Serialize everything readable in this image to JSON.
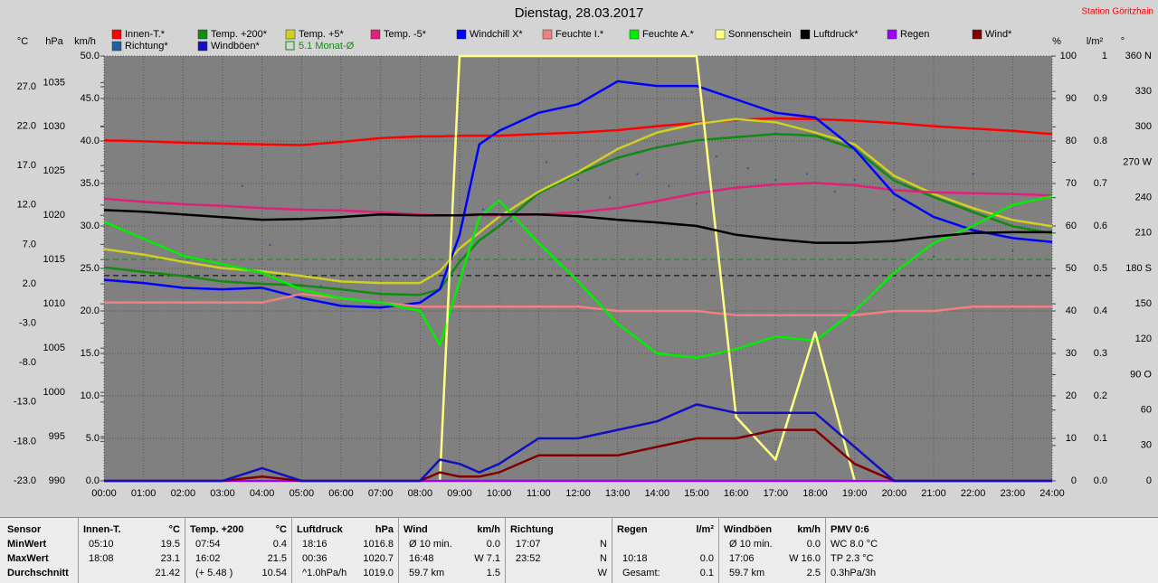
{
  "chart_data": {
    "type": "line",
    "title": "Dienstag, 28.03.2017",
    "station": "Station Göritzhain",
    "xlim": [
      0,
      24
    ],
    "xticks": [
      {
        "value": 0,
        "label": "00:00"
      },
      {
        "value": 1,
        "label": "01:00"
      },
      {
        "value": 2,
        "label": "02:00"
      },
      {
        "value": 3,
        "label": "03:00"
      },
      {
        "value": 4,
        "label": "04:00"
      },
      {
        "value": 5,
        "label": "05:00"
      },
      {
        "value": 6,
        "label": "06:00"
      },
      {
        "value": 7,
        "label": "07:00"
      },
      {
        "value": 8,
        "label": "08:00"
      },
      {
        "value": 9,
        "label": "09:00"
      },
      {
        "value": 10,
        "label": "10:00"
      },
      {
        "value": 11,
        "label": "11:00"
      },
      {
        "value": 12,
        "label": "12:00"
      },
      {
        "value": 13,
        "label": "13:00"
      },
      {
        "value": 14,
        "label": "14:00"
      },
      {
        "value": 15,
        "label": "15:00"
      },
      {
        "value": 16,
        "label": "16:00"
      },
      {
        "value": 17,
        "label": "17:00"
      },
      {
        "value": 18,
        "label": "18:00"
      },
      {
        "value": 19,
        "label": "19:00"
      },
      {
        "value": 20,
        "label": "20:00"
      },
      {
        "value": 21,
        "label": "21:00"
      },
      {
        "value": 22,
        "label": "22:00"
      },
      {
        "value": 23,
        "label": "23:00"
      },
      {
        "value": 24,
        "label": "24:00"
      }
    ],
    "x": [
      0,
      1,
      2,
      3,
      4,
      5,
      6,
      7,
      8,
      8.5,
      9,
      9.5,
      10,
      11,
      12,
      13,
      14,
      15,
      16,
      17,
      18,
      19,
      20,
      21,
      22,
      23,
      24
    ],
    "axes": {
      "temp": {
        "label": "°C",
        "ylim": [
          -23,
          30.9
        ],
        "yticks": [
          {
            "value": -23,
            "label": "-23.0"
          },
          {
            "value": -18,
            "label": "-18.0"
          },
          {
            "value": -13,
            "label": "-13.0"
          },
          {
            "value": -8,
            "label": "-8.0"
          },
          {
            "value": -3,
            "label": "-3.0"
          },
          {
            "value": 2,
            "label": "2.0"
          },
          {
            "value": 7,
            "label": "7.0"
          },
          {
            "value": 12,
            "label": "12.0"
          },
          {
            "value": 17,
            "label": "17.0"
          },
          {
            "value": 22,
            "label": "22.0"
          },
          {
            "value": 27,
            "label": "27.0"
          }
        ]
      },
      "hpa": {
        "label": "hPa",
        "ylim": [
          990,
          1038
        ],
        "yticks": [
          990,
          995,
          1000,
          1005,
          1010,
          1015,
          1020,
          1025,
          1030,
          1035
        ]
      },
      "kmh": {
        "label": "km/h",
        "ylim": [
          0,
          50
        ],
        "grid": true,
        "yticks": [
          {
            "value": 0,
            "label": "0.0"
          },
          {
            "value": 5,
            "label": "5.0"
          },
          {
            "value": 10,
            "label": "10.0"
          },
          {
            "value": 15,
            "label": "15.0"
          },
          {
            "value": 20,
            "label": "20.0"
          },
          {
            "value": 25,
            "label": "25.0"
          },
          {
            "value": 30,
            "label": "30.0"
          },
          {
            "value": 35,
            "label": "35.0"
          },
          {
            "value": 40,
            "label": "40.0"
          },
          {
            "value": 45,
            "label": "45.0"
          },
          {
            "value": 50,
            "label": "50.0"
          }
        ]
      },
      "pct": {
        "label": "%",
        "ylim": [
          0,
          100
        ],
        "yticks": [
          0,
          10,
          20,
          30,
          40,
          50,
          60,
          70,
          80,
          90,
          100
        ]
      },
      "rain": {
        "label": "l/m²",
        "ylim": [
          0,
          1
        ],
        "yticks": [
          {
            "value": 0,
            "label": "0.0"
          },
          {
            "value": 0.1,
            "label": "0.1"
          },
          {
            "value": 0.2,
            "label": "0.2"
          },
          {
            "value": 0.3,
            "label": "0.3"
          },
          {
            "value": 0.4,
            "label": "0.4"
          },
          {
            "value": 0.5,
            "label": "0.5"
          },
          {
            "value": 0.6,
            "label": "0.6"
          },
          {
            "value": 0.7,
            "label": "0.7"
          },
          {
            "value": 0.8,
            "label": "0.8"
          },
          {
            "value": 0.9,
            "label": "0.9"
          },
          1
        ]
      },
      "deg": {
        "label": "°",
        "ylim": [
          0,
          360
        ],
        "yticks": [
          0,
          30,
          60,
          {
            "value": 90,
            "label": "90 O"
          },
          120,
          150,
          {
            "value": 180,
            "label": "180 S"
          },
          210,
          240,
          {
            "value": 270,
            "label": "270 W"
          },
          300,
          330,
          {
            "value": 360,
            "label": "360 N"
          }
        ]
      }
    },
    "series": [
      {
        "name": "Innen-T.*",
        "color": "#ff0000",
        "axis": "temp",
        "values": [
          20.2,
          20.1,
          19.9,
          19.8,
          19.7,
          19.6,
          20.0,
          20.5,
          20.7,
          20.7,
          20.8,
          20.8,
          20.8,
          21.0,
          21.2,
          21.5,
          22.0,
          22.4,
          22.8,
          23.0,
          22.9,
          22.7,
          22.4,
          22.0,
          21.7,
          21.4,
          21.0
        ]
      },
      {
        "name": "Temp. +200*",
        "color": "#108a10",
        "axis": "temp",
        "values": [
          4.1,
          3.5,
          3.0,
          2.3,
          2.0,
          1.8,
          1.3,
          0.7,
          0.6,
          1.3,
          4.8,
          7.5,
          9.3,
          13.5,
          16.0,
          18.0,
          19.3,
          20.2,
          20.6,
          21.0,
          20.8,
          19.1,
          15.1,
          13.0,
          11.1,
          9.3,
          8.4
        ]
      },
      {
        "name": "Temp. +5*",
        "color": "#d0d020",
        "axis": "temp",
        "values": [
          6.4,
          5.7,
          4.8,
          4.0,
          3.6,
          3.0,
          2.3,
          2.1,
          2.1,
          3.6,
          6.5,
          8.5,
          10.5,
          13.7,
          16.2,
          19.1,
          21.2,
          22.3,
          22.9,
          22.5,
          21.2,
          19.7,
          15.7,
          13.4,
          11.6,
          10.1,
          9.3
        ]
      },
      {
        "name": "Temp. -5*",
        "color": "#e0207a",
        "axis": "temp",
        "values": [
          12.8,
          12.4,
          12.1,
          11.9,
          11.6,
          11.4,
          11.3,
          11.1,
          10.8,
          10.7,
          10.7,
          10.7,
          10.7,
          10.8,
          11.1,
          11.6,
          12.5,
          13.5,
          14.2,
          14.6,
          14.8,
          14.5,
          13.9,
          13.6,
          13.5,
          13.4,
          13.2
        ]
      },
      {
        "name": "Windchill X*",
        "color": "#0000ff",
        "axis": "temp",
        "values": [
          2.5,
          2.1,
          1.5,
          1.3,
          1.5,
          0.2,
          -0.8,
          -1.0,
          -0.4,
          1.3,
          8.2,
          19.7,
          21.4,
          23.7,
          24.8,
          27.7,
          27.1,
          27.1,
          25.4,
          23.7,
          23.1,
          19.1,
          13.4,
          10.5,
          8.8,
          7.8,
          7.3
        ]
      },
      {
        "name": "Feuchte I.*",
        "color": "#f08080",
        "axis": "pct",
        "values": [
          42,
          42,
          42,
          42,
          42,
          44,
          43,
          42,
          41,
          41,
          41,
          41,
          41,
          41,
          41,
          40,
          40,
          40,
          39,
          39,
          39,
          39,
          40,
          40,
          41,
          41,
          41
        ]
      },
      {
        "name": "Feuchte A.*",
        "color": "#00ee00",
        "axis": "pct",
        "values": [
          61,
          57,
          53,
          51,
          49,
          45,
          43,
          42,
          40,
          32,
          47,
          62,
          66,
          56,
          47,
          37,
          30,
          29,
          31,
          34,
          33,
          40,
          49,
          56,
          60,
          65,
          67
        ]
      },
      {
        "name": "Sonnenschein",
        "color": "#ffff80",
        "axis": "pct",
        "values": [
          0,
          0,
          0,
          0,
          0,
          0,
          0,
          0,
          0,
          0,
          100,
          100,
          100,
          100,
          100,
          100,
          100,
          100,
          15,
          5,
          35,
          0,
          0,
          0,
          0,
          0,
          0
        ]
      },
      {
        "name": "Luftdruck*",
        "color": "#000000",
        "axis": "hpa",
        "values": [
          1020.6,
          1020.4,
          1020.1,
          1019.8,
          1019.5,
          1019.6,
          1019.8,
          1020.1,
          1020.0,
          1020.0,
          1020.0,
          1020.1,
          1020.1,
          1020.1,
          1019.9,
          1019.5,
          1019.2,
          1018.8,
          1017.8,
          1017.3,
          1016.9,
          1016.9,
          1017.1,
          1017.6,
          1018.0,
          1018.1,
          1018.1
        ]
      },
      {
        "name": "Regen",
        "color": "#9900ff",
        "axis": "rain",
        "values": [
          0,
          0,
          0,
          0,
          0,
          0,
          0,
          0,
          0,
          0,
          0,
          0,
          0,
          0,
          0,
          0,
          0,
          0,
          0,
          0,
          0,
          0,
          0,
          0,
          0,
          0,
          0
        ]
      },
      {
        "name": "Wind*",
        "color": "#800000",
        "axis": "kmh",
        "values": [
          0,
          0,
          0,
          0,
          0.5,
          0,
          0,
          0,
          0,
          1,
          0.5,
          0.5,
          1,
          3,
          3,
          3,
          4,
          5,
          5,
          6,
          6,
          2,
          0,
          0,
          0,
          0,
          0
        ]
      },
      {
        "name": "Richtung*",
        "color": "#2060a0",
        "axis": "deg",
        "scatter": true,
        "x": [
          3.5,
          4.2,
          5.5,
          9.6,
          10.3,
          11.2,
          12.0,
          12.8,
          13.5,
          14.3,
          15.0,
          15.5,
          16.3,
          17.0,
          17.8,
          18.5,
          19.0,
          20.0,
          21.0,
          22.0,
          23.0
        ],
        "values": [
          250,
          200,
          165,
          230,
          220,
          270,
          255,
          240,
          260,
          250,
          235,
          275,
          265,
          255,
          260,
          245,
          255,
          230,
          190,
          260,
          195
        ]
      },
      {
        "name": "Windböen*",
        "color": "#1010c0",
        "axis": "kmh",
        "values": [
          0,
          0,
          0,
          0,
          1.5,
          0,
          0,
          0,
          0,
          2.5,
          2,
          1,
          2,
          5,
          5,
          6,
          7,
          9,
          8,
          8,
          8,
          4,
          0,
          0,
          0,
          0,
          0
        ]
      }
    ],
    "monthly_average": {
      "label": "5.1 Monat-Ø",
      "value": 5.1,
      "axis": "temp",
      "color": "#108a10"
    },
    "reference_lines": [
      {
        "axis": "hpa",
        "value": 1013.2,
        "color": "#000000"
      },
      {
        "axis": "temp",
        "value": 0,
        "color": "#40a0a0"
      }
    ]
  },
  "table": {
    "row_labels": [
      "Sensor",
      "MinWert",
      "MaxWert",
      "Durchschnitt"
    ],
    "groups": [
      {
        "title": "Innen-T.",
        "unit": "°C",
        "rows": [
          [
            "05:10",
            "19.5"
          ],
          [
            "18:08",
            "23.1"
          ],
          [
            null,
            "21.42"
          ]
        ]
      },
      {
        "title": "Temp. +200",
        "unit": "°C",
        "rows": [
          [
            "07:54",
            "0.4"
          ],
          [
            "16:02",
            "21.5"
          ],
          [
            "(+ 5.48 )",
            "10.54"
          ]
        ]
      },
      {
        "title": "Luftdruck",
        "unit": "hPa",
        "rows": [
          [
            "18:16",
            "1016.8"
          ],
          [
            "00:36",
            "1020.7"
          ],
          [
            "^1.0hPa/h",
            "1019.0"
          ]
        ]
      },
      {
        "title": "Wind",
        "unit": "km/h",
        "rows": [
          [
            "Ø 10 min.",
            "0.0"
          ],
          [
            "16:48",
            "W 7.1"
          ],
          [
            "59.7 km",
            "1.5"
          ]
        ]
      },
      {
        "title": "Richtung",
        "unit": null,
        "rows": [
          [
            "17:07",
            "N"
          ],
          [
            "23:52",
            "N"
          ],
          [
            null,
            "W"
          ]
        ]
      },
      {
        "title": "Regen",
        "unit": "l/m²",
        "rows": [
          [
            null,
            null
          ],
          [
            "10:18",
            "0.0"
          ],
          [
            "Gesamt:",
            "0.1"
          ]
        ]
      },
      {
        "title": "Windböen",
        "unit": "km/h",
        "rows": [
          [
            "Ø 10 min.",
            "0.0"
          ],
          [
            "17:06",
            "W 16.0"
          ],
          [
            "59.7 km",
            "2.5"
          ]
        ]
      },
      {
        "title": "PMV 0:6",
        "unit": null,
        "rows": [
          [
            "WC 8.0 °C",
            null
          ],
          [
            "TP 2.3 °C",
            null
          ],
          [
            "0.3hPa/3h",
            null
          ]
        ]
      }
    ]
  }
}
